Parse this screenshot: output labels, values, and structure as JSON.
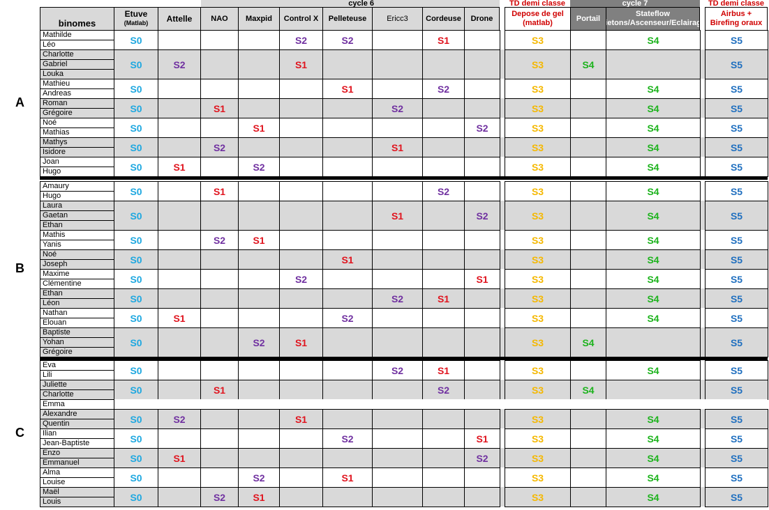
{
  "colors": {
    "S0": "#1fa8e0",
    "S1": "#e0141e",
    "S2": "#7030a0",
    "S3": "#f5b800",
    "S4": "#1db31d",
    "S5": "#1f6fbf",
    "row_gray": "#d9d9d9",
    "header_dark": "#808080"
  },
  "banners": {
    "cycle6": "cycle 6",
    "td1": "TD demi classe",
    "cycle7": "cycle 7",
    "td2": "TD demi classe"
  },
  "headers": {
    "binomes": "binomes",
    "etuve": "Etuve",
    "etuve_sub": "(Matlab)",
    "attelle": "Attelle",
    "nao": "NAO",
    "maxpid": "Maxpid",
    "controlx": "Control X",
    "pelleteuse": "Pelleteuse",
    "ericc3": "Ericc3",
    "cordeuse": "Cordeuse",
    "drone": "Drone",
    "depose": "Depose de gel (matlab)",
    "portail": "Portail",
    "stateflow": "Stateflow (Pietons/Ascenseur/Eclairage)",
    "airbus": "Airbus + Birefing oraux"
  },
  "sections": [
    {
      "label": "A",
      "groups": [
        {
          "members": [
            "Mathilde",
            "Léo"
          ],
          "a": {
            "etuve": "S0",
            "controlx": "S2",
            "pelleteuse": "S2",
            "cordeuse": "S1",
            "depose": "S3",
            "stateflow": "S4",
            "airbus": "S5"
          }
        },
        {
          "members": [
            "Charlotte",
            "Gabriel",
            "Louka"
          ],
          "a": {
            "etuve": "S0",
            "attelle": "S2",
            "controlx": "S1",
            "depose": "S3",
            "portail": "S4",
            "airbus": "S5"
          }
        },
        {
          "members": [
            "Mathieu",
            "Andreas"
          ],
          "a": {
            "etuve": "S0",
            "pelleteuse": "S1",
            "cordeuse": "S2",
            "depose": "S3",
            "stateflow": "S4",
            "airbus": "S5"
          }
        },
        {
          "members": [
            "Roman",
            "Grégoire"
          ],
          "a": {
            "etuve": "S0",
            "nao": "S1",
            "ericc3": "S2",
            "depose": "S3",
            "stateflow": "S4",
            "airbus": "S5"
          }
        },
        {
          "members": [
            "Noé",
            "Mathias"
          ],
          "a": {
            "etuve": "S0",
            "maxpid": "S1",
            "drone": "S2",
            "depose": "S3",
            "stateflow": "S4",
            "airbus": "S5"
          }
        },
        {
          "members": [
            "Mathys",
            "Isidore"
          ],
          "a": {
            "etuve": "S0",
            "nao": "S2",
            "ericc3": "S1",
            "depose": "S3",
            "stateflow": "S4",
            "airbus": "S5"
          }
        },
        {
          "members": [
            "Joan",
            "Hugo"
          ],
          "a": {
            "etuve": "S0",
            "attelle": "S1",
            "maxpid": "S2",
            "depose": "S3",
            "stateflow": "S4",
            "airbus": "S5"
          }
        }
      ]
    },
    {
      "label": "B",
      "groups": [
        {
          "members": [
            "Amaury",
            "Hugo"
          ],
          "a": {
            "etuve": "S0",
            "nao": "S1",
            "cordeuse": "S2",
            "depose": "S3",
            "stateflow": "S4",
            "airbus": "S5"
          }
        },
        {
          "members": [
            "Laura",
            "Gaetan",
            "Ethan"
          ],
          "a": {
            "etuve": "S0",
            "ericc3": "S1",
            "drone": "S2",
            "depose": "S3",
            "stateflow": "S4",
            "airbus": "S5"
          }
        },
        {
          "members": [
            "Mathis",
            "Yanis"
          ],
          "a": {
            "etuve": "S0",
            "nao": "S2",
            "maxpid": "S1",
            "depose": "S3",
            "stateflow": "S4",
            "airbus": "S5"
          }
        },
        {
          "members": [
            "Noé",
            "Joseph"
          ],
          "a": {
            "etuve": "S0",
            "pelleteuse": "S1",
            "depose": "S3",
            "stateflow": "S4",
            "airbus": "S5"
          }
        },
        {
          "members": [
            "Maxime",
            "Clémentine"
          ],
          "a": {
            "etuve": "S0",
            "controlx": "S2",
            "drone": "S1",
            "depose": "S3",
            "stateflow": "S4",
            "airbus": "S5"
          }
        },
        {
          "members": [
            "Ethan",
            "Léon"
          ],
          "a": {
            "etuve": "S0",
            "ericc3": "S2",
            "cordeuse": "S1",
            "depose": "S3",
            "stateflow": "S4",
            "airbus": "S5"
          }
        },
        {
          "members": [
            "Nathan",
            "Elouan"
          ],
          "a": {
            "etuve": "S0",
            "attelle": "S1",
            "pelleteuse": "S2",
            "depose": "S3",
            "stateflow": "S4",
            "airbus": "S5"
          }
        },
        {
          "members": [
            "Baptiste",
            "Yohan",
            "Grégoire"
          ],
          "a": {
            "etuve": "S0",
            "maxpid": "S2",
            "controlx": "S1",
            "depose": "S3",
            "portail": "S4",
            "airbus": "S5"
          }
        }
      ]
    },
    {
      "label": "C",
      "groups": [
        {
          "members": [
            "Eva",
            "Lili"
          ],
          "a": {
            "etuve": "S0",
            "ericc3": "S2",
            "cordeuse": "S1",
            "depose": "S3",
            "stateflow": "S4",
            "airbus": "S5"
          }
        },
        {
          "members": [
            "Juliette",
            "Charlotte"
          ],
          "a": {
            "etuve": "S0",
            "nao": "S1",
            "cordeuse": "S2",
            "depose": "S3",
            "portail": "S4",
            "airbus": "S5"
          }
        },
        {
          "members": [
            "Emma"
          ],
          "a": {}
        },
        {
          "members": [
            "Alexandre",
            "Quentin"
          ],
          "a": {
            "etuve": "S0",
            "attelle": "S2",
            "controlx": "S1",
            "depose": "S3",
            "stateflow": "S4",
            "airbus": "S5"
          }
        },
        {
          "members": [
            "Ilian",
            "Jean-Baptiste"
          ],
          "a": {
            "etuve": "S0",
            "pelleteuse": "S2",
            "drone": "S1",
            "depose": "S3",
            "stateflow": "S4",
            "airbus": "S5"
          }
        },
        {
          "members": [
            "Enzo",
            "Emmanuel"
          ],
          "a": {
            "etuve": "S0",
            "attelle": "S1",
            "drone": "S2",
            "depose": "S3",
            "stateflow": "S4",
            "airbus": "S5"
          }
        },
        {
          "members": [
            "Alma",
            "Louise"
          ],
          "a": {
            "etuve": "S0",
            "maxpid": "S2",
            "pelleteuse": "S1",
            "depose": "S3",
            "stateflow": "S4",
            "airbus": "S5"
          }
        },
        {
          "members": [
            "Maël",
            "Louis"
          ],
          "a": {
            "etuve": "S0",
            "nao": "S2",
            "maxpid": "S1",
            "depose": "S3",
            "stateflow": "S4",
            "airbus": "S5"
          }
        }
      ]
    }
  ]
}
